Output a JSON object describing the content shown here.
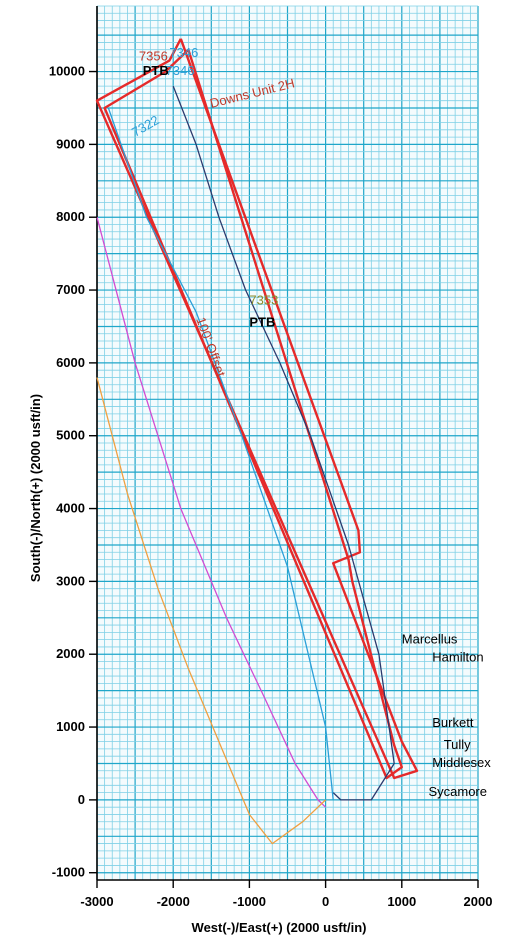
{
  "chart_data": {
    "type": "line",
    "xlabel": "West(-)/East(+) (2000 usft/in)",
    "ylabel": "South(-)/North(+) (2000 usft/in)",
    "xlim": [
      -3000,
      2000
    ],
    "ylim": [
      -1100,
      10900
    ],
    "grid": true,
    "x_ticks": [
      -3000,
      -2000,
      -1000,
      0,
      1000,
      2000
    ],
    "y_ticks": [
      -1000,
      0,
      1000,
      2000,
      3000,
      4000,
      5000,
      6000,
      7000,
      8000,
      9000,
      10000
    ],
    "x_tick_labels": [
      "-3000",
      "-2000",
      "-1000",
      "0",
      "1000",
      "2000"
    ],
    "y_tick_labels": [
      "-1000",
      "0",
      "1000",
      "2000",
      "3000",
      "4000",
      "5000",
      "6000",
      "7000",
      "8000",
      "9000",
      "10000"
    ],
    "series": [
      {
        "color": "#e52a2a",
        "x": [
          -1900,
          -2050,
          -3000,
          900,
          1200,
          1000,
          100,
          450,
          430,
          -1900
        ],
        "y": [
          10450,
          10150,
          9600,
          300,
          400,
          800,
          3250,
          3400,
          3700,
          10450
        ]
      },
      {
        "color": "#e52a2a",
        "x": [
          -1800,
          -2100,
          -2900,
          800,
          1000,
          900,
          350,
          300,
          -1800
        ],
        "y": [
          10300,
          10000,
          9500,
          300,
          450,
          750,
          3000,
          3300,
          10300
        ]
      },
      {
        "color": "#2b3a6e",
        "x": [
          -2000,
          -1700,
          -1400,
          -1050,
          -600,
          -200,
          300,
          700,
          900,
          600,
          200,
          100
        ],
        "y": [
          9800,
          9000,
          8000,
          7000,
          6000,
          5000,
          3500,
          2000,
          500,
          0,
          0,
          100
        ]
      },
      {
        "color": "#2b9fd8",
        "x": [
          -2850,
          -2350,
          -1700,
          -1100,
          -500,
          0,
          100
        ],
        "y": [
          9500,
          8000,
          6700,
          5000,
          3200,
          1000,
          0
        ]
      },
      {
        "color": "#d24bd2",
        "x": [
          -3000,
          -2500,
          -1900,
          -1300,
          -800,
          -400,
          -100,
          0
        ],
        "y": [
          8000,
          6000,
          4000,
          2500,
          1400,
          500,
          0,
          -100
        ]
      },
      {
        "color": "#f0a040",
        "x": [
          -3000,
          -2600,
          -2200,
          -1800,
          -1400,
          -1000,
          -700,
          -300,
          0
        ],
        "y": [
          5800,
          4200,
          2900,
          1800,
          800,
          -200,
          -600,
          -300,
          0
        ]
      }
    ],
    "annotations": [
      {
        "text": "7356",
        "color": "#c0392b",
        "x": -2450,
        "y": 10150
      },
      {
        "text": "7346",
        "color": "#2b9fd8",
        "x": -2050,
        "y": 10200
      },
      {
        "text": "7346",
        "color": "#2b9fd8",
        "x": -2100,
        "y": 9950
      },
      {
        "text": "PTB",
        "color": "#000000",
        "x": -2400,
        "y": 9950
      },
      {
        "text": "Downs Unit 2H",
        "color": "#c0392b",
        "x": -1500,
        "y": 9500
      },
      {
        "text": "7322",
        "color": "#2b9fd8",
        "x": -2500,
        "y": 9100
      },
      {
        "text": "7353",
        "color": "#8a8a2a",
        "x": -1000,
        "y": 6800
      },
      {
        "text": "PTB",
        "color": "#000000",
        "x": -1000,
        "y": 6500
      },
      {
        "text": "100' Offset",
        "color": "#c0392b",
        "x": -1700,
        "y": 6600
      },
      {
        "text": "Marcellus",
        "color": "#000000",
        "x": 1000,
        "y": 2150
      },
      {
        "text": "Hamilton",
        "color": "#000000",
        "x": 1400,
        "y": 1900
      },
      {
        "text": "Burkett",
        "color": "#000000",
        "x": 1400,
        "y": 1000
      },
      {
        "text": "Tully",
        "color": "#000000",
        "x": 1550,
        "y": 700
      },
      {
        "text": "Middlesex",
        "color": "#000000",
        "x": 1400,
        "y": 450
      },
      {
        "text": "Sycamore",
        "color": "#000000",
        "x": 1350,
        "y": 50
      }
    ]
  }
}
